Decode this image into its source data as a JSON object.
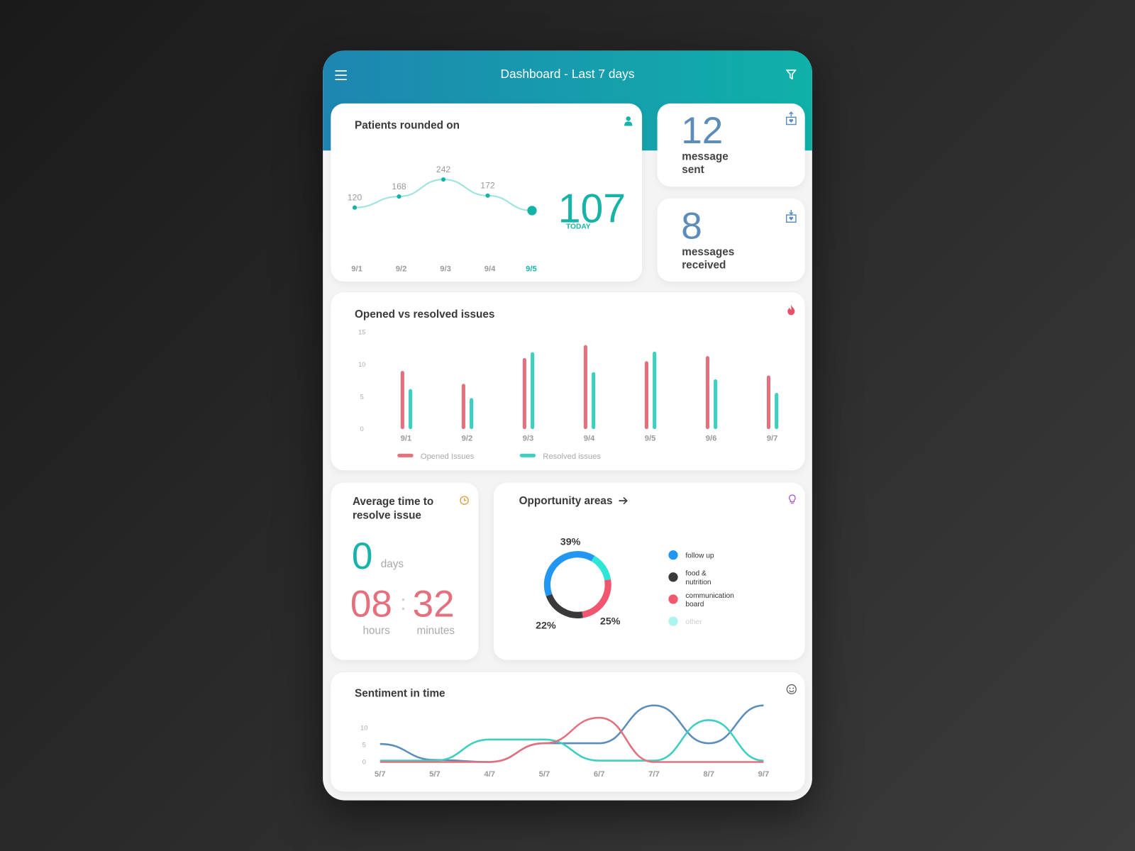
{
  "header": {
    "title": "Dashboard - Last 7 days"
  },
  "patients": {
    "title": "Patients rounded on",
    "today_label": "TODAY",
    "chart": {
      "type": "line",
      "categories": [
        "9/1",
        "9/2",
        "9/3",
        "9/4",
        "9/5"
      ],
      "values": [
        120,
        168,
        242,
        172,
        107
      ],
      "color": "#9be3dc",
      "point_color": "#14b3a6"
    }
  },
  "messages_sent": {
    "value": "12",
    "label": "message sent"
  },
  "messages_received": {
    "value": "8",
    "label": "messages received"
  },
  "issues": {
    "title": "Opened vs resolved issues",
    "chart": {
      "type": "bar",
      "categories": [
        "9/1",
        "9/2",
        "9/3",
        "9/4",
        "9/5",
        "9/6",
        "9/7"
      ],
      "series": [
        {
          "name": "Opened Issues",
          "color": "#e4707e",
          "values": [
            9,
            7,
            11,
            13,
            10.5,
            11.3,
            8.3
          ]
        },
        {
          "name": "Resolved issues",
          "color": "#3ecfbf",
          "values": [
            6.2,
            4.8,
            11.9,
            8.8,
            12,
            7.7,
            5.6
          ]
        }
      ],
      "ylim": [
        0,
        15
      ],
      "yticks": [
        0,
        5,
        10,
        15
      ],
      "grid": false
    }
  },
  "avg_time": {
    "title": "Average time to resolve issue",
    "days": "0",
    "days_unit": "days",
    "hours": "08",
    "hours_unit": "hours",
    "separator": ":",
    "minutes": "32",
    "minutes_unit": "minutes"
  },
  "opportunity": {
    "title": "Opportunity areas",
    "chart": {
      "type": "pie",
      "categories": [
        "follow up",
        "food & nutrition",
        "communication board",
        "other"
      ],
      "values": [
        39,
        22,
        25,
        14
      ],
      "value_labels": [
        "39%",
        "22%",
        "25%",
        null
      ],
      "colors": [
        "#2196f3",
        "#3a3a3a",
        "#f0566e",
        "#2ee6d6"
      ]
    }
  },
  "sentiment": {
    "title": "Sentiment in time",
    "chart": {
      "type": "line",
      "categories": [
        "5/7",
        "5/7",
        "4/7",
        "5/7",
        "6/7",
        "7/7",
        "8/7",
        "9/7"
      ],
      "series": [
        {
          "color": "#5b8db8",
          "values": [
            5.3,
            0.6,
            0,
            5.5,
            5.5,
            16.6,
            5.5,
            16.6
          ]
        },
        {
          "color": "#3ecfbf",
          "values": [
            0.4,
            0.4,
            6.6,
            6.6,
            0.4,
            0.4,
            12.3,
            0.4
          ]
        },
        {
          "color": "#e4707e",
          "values": [
            0,
            0,
            0,
            5.5,
            13,
            0,
            0,
            0
          ]
        }
      ],
      "ylim": [
        0,
        17
      ],
      "yticks": [
        0,
        5,
        10
      ],
      "grid": false
    }
  }
}
